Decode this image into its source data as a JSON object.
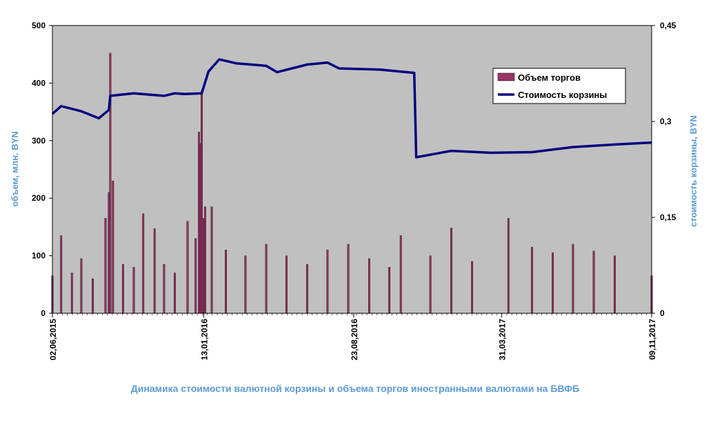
{
  "chart_data": {
    "type": "bar+line",
    "title": "Динамика  стоимости валютной корзины и объема торгов иностранными валютами на БВФБ",
    "ylabel_left": "объем, млн. BYN",
    "ylabel_right": "стоимость  корзины, BYN",
    "ylim_left": [
      0,
      500
    ],
    "ylim_right": [
      0,
      0.45
    ],
    "yticks_left": [
      "0",
      "100",
      "200",
      "300",
      "400",
      "500"
    ],
    "yticks_right": [
      "0",
      "0,15",
      "0,3",
      "0,45"
    ],
    "x_start": "02.06.2015",
    "x_end": "09.11.2017",
    "xtick_labels": [
      "02,06,2015",
      "13,01,2016",
      "23,08,2016",
      "31,03,2017",
      "09,11,2017"
    ],
    "grid": false,
    "legend_position": "top-right",
    "legend": [
      "Объем торгов",
      "Стоимость  корзины"
    ],
    "colors": {
      "plot_bg": "#c0c0c0",
      "bar_fill": "#993366",
      "line": "#000080",
      "caption": "#5b9bd5",
      "axis_title": "#5b9bd5"
    },
    "series": [
      {
        "name": "Объем торгов",
        "kind": "bar",
        "axis": "left",
        "points": [
          [
            "02.06.2015",
            65
          ],
          [
            "15.06.2015",
            135
          ],
          [
            "01.07.2015",
            70
          ],
          [
            "15.07.2015",
            95
          ],
          [
            "01.08.2015",
            60
          ],
          [
            "20.08.2015",
            165
          ],
          [
            "25.08.2015",
            210
          ],
          [
            "27.08.2015",
            452
          ],
          [
            "31.08.2015",
            230
          ],
          [
            "15.09.2015",
            85
          ],
          [
            "01.10.2015",
            80
          ],
          [
            "15.10.2015",
            173
          ],
          [
            "01.11.2015",
            147
          ],
          [
            "15.11.2015",
            85
          ],
          [
            "01.12.2015",
            70
          ],
          [
            "20.12.2015",
            160
          ],
          [
            "01.01.2016",
            130
          ],
          [
            "06.01.2016",
            315
          ],
          [
            "08.01.2016",
            295
          ],
          [
            "10.01.2016",
            385
          ],
          [
            "12.01.2016",
            165
          ],
          [
            "15.01.2016",
            185
          ],
          [
            "25.01.2016",
            185
          ],
          [
            "15.02.2016",
            110
          ],
          [
            "15.03.2016",
            100
          ],
          [
            "15.04.2016",
            120
          ],
          [
            "15.05.2016",
            100
          ],
          [
            "15.06.2016",
            85
          ],
          [
            "15.07.2016",
            110
          ],
          [
            "15.08.2016",
            120
          ],
          [
            "15.09.2016",
            95
          ],
          [
            "15.10.2016",
            80
          ],
          [
            "01.11.2016",
            135
          ],
          [
            "15.12.2016",
            100
          ],
          [
            "15.01.2017",
            148
          ],
          [
            "15.02.2017",
            90
          ],
          [
            "10.04.2017",
            165
          ],
          [
            "15.05.2017",
            115
          ],
          [
            "15.06.2017",
            105
          ],
          [
            "15.07.2017",
            120
          ],
          [
            "15.08.2017",
            108
          ],
          [
            "15.09.2017",
            100
          ],
          [
            "09.11.2017",
            65
          ]
        ]
      },
      {
        "name": "Стоимость  корзины",
        "kind": "line",
        "axis": "right",
        "points": [
          [
            "02.06.2015",
            0.312
          ],
          [
            "15.06.2015",
            0.324
          ],
          [
            "15.07.2015",
            0.316
          ],
          [
            "10.08.2015",
            0.305
          ],
          [
            "25.08.2015",
            0.318
          ],
          [
            "27.08.2015",
            0.34
          ],
          [
            "01.10.2015",
            0.344
          ],
          [
            "15.11.2015",
            0.34
          ],
          [
            "01.12.2015",
            0.344
          ],
          [
            "15.12.2015",
            0.343
          ],
          [
            "10.01.2016",
            0.344
          ],
          [
            "20.01.2016",
            0.378
          ],
          [
            "05.02.2016",
            0.397
          ],
          [
            "01.03.2016",
            0.391
          ],
          [
            "15.04.2016",
            0.387
          ],
          [
            "01.05.2016",
            0.377
          ],
          [
            "15.06.2016",
            0.389
          ],
          [
            "15.07.2016",
            0.392
          ],
          [
            "01.08.2016",
            0.383
          ],
          [
            "01.10.2016",
            0.381
          ],
          [
            "21.11.2016",
            0.376
          ],
          [
            "24.11.2016",
            0.244
          ],
          [
            "15.01.2017",
            0.254
          ],
          [
            "15.03.2017",
            0.251
          ],
          [
            "15.05.2017",
            0.252
          ],
          [
            "15.07.2017",
            0.26
          ],
          [
            "15.09.2017",
            0.264
          ],
          [
            "09.11.2017",
            0.267
          ]
        ]
      }
    ]
  }
}
